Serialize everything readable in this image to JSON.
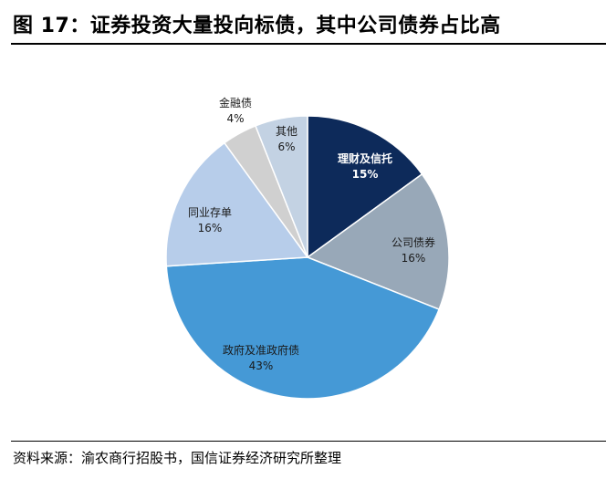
{
  "title": "图 17：证券投资大量投向标债，其中公司债券占比高",
  "source": "资料来源：渝农商行招股书，国信证券经济研究所整理",
  "chart_data": {
    "type": "pie",
    "title": "",
    "slices": [
      {
        "label": "理财及信托",
        "value": 15,
        "display": "15%",
        "color": "#0d2a5a"
      },
      {
        "label": "公司债券",
        "value": 16,
        "display": "16%",
        "color": "#98a8b8"
      },
      {
        "label": "政府及准政府债",
        "value": 43,
        "display": "43%",
        "color": "#4599d6"
      },
      {
        "label": "同业存单",
        "value": 16,
        "display": "16%",
        "color": "#b7cdea"
      },
      {
        "label": "金融债",
        "value": 4,
        "display": "4%",
        "color": "#d0d0d0"
      },
      {
        "label": "其他",
        "value": 6,
        "display": "6%",
        "color": "#c3d2e3"
      }
    ]
  }
}
